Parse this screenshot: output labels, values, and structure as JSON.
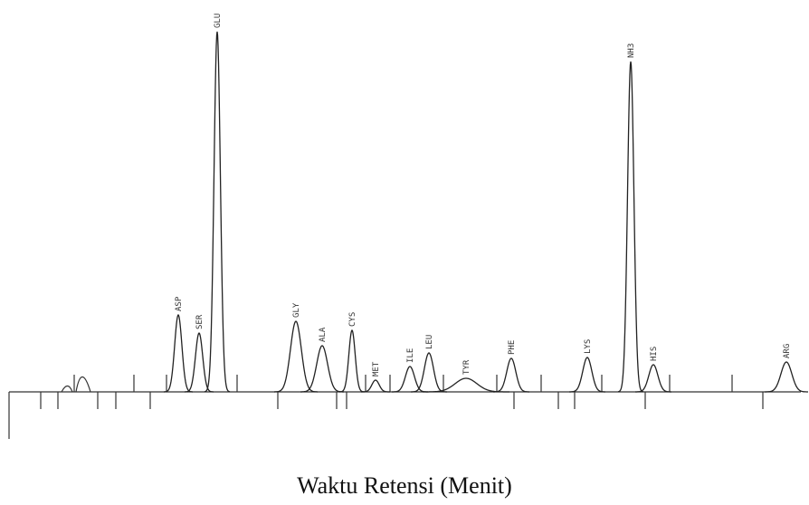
{
  "chart_data": {
    "type": "chromatogram",
    "x_label": "Waktu Retensi (Menit)",
    "categories": [
      "ASP",
      "SER",
      "GLU",
      "GLY",
      "ALA",
      "CYS",
      "MET",
      "ILE",
      "LEU",
      "TYR",
      "PHE",
      "LYS",
      "NH3",
      "HIS",
      "ARG"
    ],
    "values": [
      85,
      65,
      398,
      78,
      51,
      68,
      13,
      28,
      43,
      15,
      37,
      38,
      365,
      30,
      33
    ],
    "color": "#222222"
  }
}
